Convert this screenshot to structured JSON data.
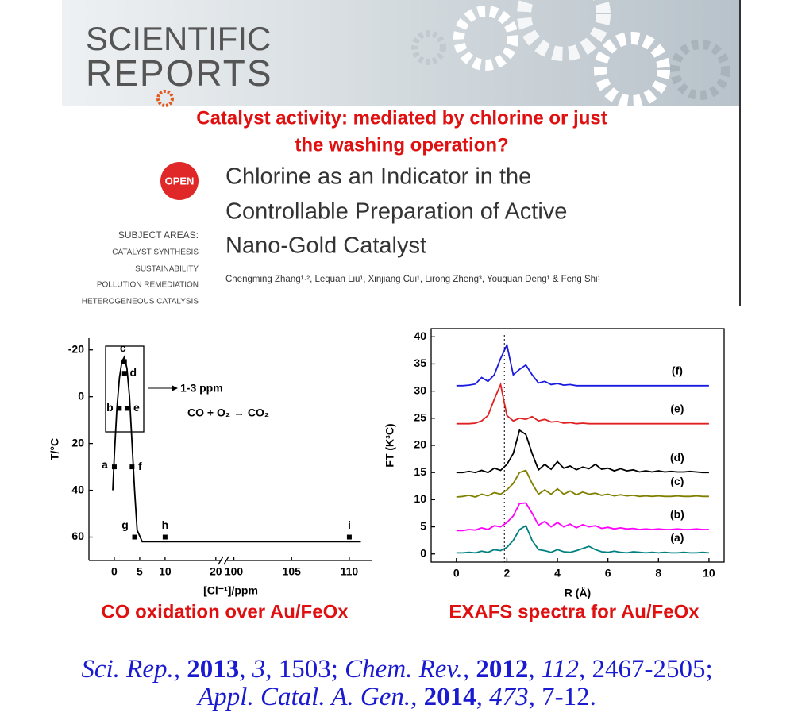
{
  "header": {
    "journal_line1": "SCIENTIFIC",
    "journal_line2": "REPORTS"
  },
  "headline": [
    "Catalyst activity: mediated by chlorine or just",
    "the washing operation?"
  ],
  "open_badge": "OPEN",
  "article_title": [
    "Chlorine as an Indicator in the",
    "Controllable Preparation of Active",
    "Nano-Gold Catalyst"
  ],
  "subject_areas": {
    "label": "SUBJECT AREAS:",
    "items": [
      "CATALYST SYNTHESIS",
      "SUSTAINABILITY",
      "POLLUTION REMEDIATION",
      "HETEROGENEOUS CATALYSIS"
    ]
  },
  "authors": "Chengming Zhang¹·², Lequan Liu¹, Xinjiang Cui¹, Lirong Zheng³, Youquan Deng¹ & Feng Shi¹",
  "chart_data": [
    {
      "type": "line",
      "x_label": "[Cl⁻¹]/ppm",
      "y_label": "T/°C",
      "xlim": [
        -5,
        112
      ],
      "xbreak": [
        20.5,
        99
      ],
      "ylim": [
        -25,
        70
      ],
      "y_inverted": true,
      "xticks": [
        0,
        5,
        10,
        20,
        100,
        105,
        110
      ],
      "yticks": [
        -20,
        0,
        20,
        40,
        60
      ],
      "annotations": [
        "1-3 ppm",
        "CO + O₂ → CO₂"
      ],
      "series": [
        {
          "color": "#000000",
          "x": [
            -0.3,
            0,
            0.5,
            1,
            1.5,
            2,
            2.5,
            3,
            3.5,
            4,
            4.5,
            5.5,
            111
          ],
          "values": [
            40,
            25,
            5,
            -8,
            -15,
            -17,
            -12,
            0,
            20,
            40,
            57,
            62,
            62
          ]
        },
        {
          "color": "#000000",
          "marker": "square",
          "x": [
            0,
            1,
            2,
            2,
            2.5,
            3.5,
            4,
            10,
            110
          ],
          "values": [
            30,
            5,
            -15,
            -10,
            5,
            30,
            60,
            60,
            60
          ],
          "point_labels": [
            "a",
            "b",
            "c",
            "d",
            "e",
            "f",
            "g",
            "h",
            "i"
          ]
        }
      ]
    },
    {
      "type": "line",
      "x_label": "R (Å)",
      "y_label": "FT (K³C)",
      "xlim": [
        -1,
        10.6
      ],
      "ylim": [
        -1.5,
        41.5
      ],
      "xticks": [
        0,
        2,
        4,
        6,
        8,
        10
      ],
      "yticks": [
        0,
        5,
        10,
        15,
        20,
        25,
        30,
        35,
        40
      ],
      "vline_x": 1.9,
      "x": [
        0,
        0.25,
        0.5,
        0.75,
        1,
        1.25,
        1.5,
        1.75,
        2,
        2.25,
        2.5,
        2.75,
        3,
        3.25,
        3.5,
        3.75,
        4,
        4.25,
        4.5,
        4.75,
        5,
        5.25,
        5.5,
        5.75,
        6,
        6.25,
        6.5,
        6.75,
        7,
        7.25,
        7.5,
        7.75,
        8,
        8.25,
        8.5,
        8.75,
        9,
        9.25,
        9.5,
        9.75,
        10
      ],
      "series": [
        {
          "name": "(a)",
          "color": "#008080",
          "values": [
            0.2,
            0.2,
            0.3,
            0.2,
            0.5,
            0.3,
            0.8,
            0.6,
            1.2,
            2.5,
            4.5,
            5.2,
            2.5,
            0.8,
            0.6,
            0.3,
            0.8,
            0.4,
            0.3,
            0.6,
            1,
            1.4,
            0.8,
            0.4,
            0.3,
            0.5,
            0.3,
            0.2,
            0.4,
            0.3,
            0.2,
            0.3,
            0.2,
            0.3,
            0.2,
            0.2,
            0.3,
            0.2,
            0.2,
            0.3,
            0.2
          ]
        },
        {
          "name": "(b)",
          "color": "#ff00ff",
          "values": [
            4.3,
            4.3,
            4.5,
            4.4,
            4.8,
            4.5,
            5.2,
            5,
            5.8,
            7,
            9.3,
            9.4,
            7.5,
            5.3,
            6,
            5,
            5.8,
            5,
            5.5,
            4.8,
            5.4,
            5,
            5.2,
            4.7,
            4.9,
            4.6,
            4.8,
            4.6,
            4.7,
            4.5,
            4.6,
            4.5,
            4.6,
            4.5,
            4.5,
            4.6,
            4.5,
            4.5,
            4.6,
            4.5,
            4.5
          ]
        },
        {
          "name": "(c)",
          "color": "#808000",
          "values": [
            10.5,
            10.6,
            10.8,
            10.5,
            11,
            10.7,
            11.3,
            11,
            11.8,
            13,
            15,
            15.4,
            13,
            11,
            11.8,
            11,
            12,
            11,
            11.6,
            10.9,
            11.4,
            11,
            11.2,
            10.8,
            11,
            10.7,
            10.9,
            10.7,
            10.8,
            10.6,
            10.7,
            10.6,
            10.7,
            10.6,
            10.6,
            10.7,
            10.6,
            10.6,
            10.7,
            10.6,
            10.6
          ]
        },
        {
          "name": "(d)",
          "color": "#000000",
          "values": [
            15,
            15,
            15.2,
            15,
            15.4,
            15,
            15.8,
            15.4,
            16.5,
            18.5,
            22.8,
            22,
            18.5,
            15.5,
            16.5,
            15.6,
            17,
            15.8,
            16.2,
            15.5,
            16,
            15.7,
            16.5,
            15.6,
            15.8,
            15.3,
            15.7,
            15.3,
            15.5,
            15.1,
            15.3,
            15.1,
            15.3,
            15.1,
            15.2,
            15.1,
            15.1,
            15.2,
            15.1,
            15,
            15
          ]
        },
        {
          "name": "(e)",
          "color": "#e02020",
          "values": [
            24,
            24,
            24,
            24.1,
            24.5,
            25.5,
            28.5,
            31.2,
            25.5,
            24.5,
            25,
            24.8,
            25.3,
            24.5,
            24.8,
            24.3,
            24.4,
            24.1,
            24.2,
            24,
            24.1,
            24,
            24,
            24,
            24,
            24,
            24,
            24,
            24,
            24,
            24,
            24,
            24,
            24,
            24,
            24,
            24,
            24,
            24,
            24,
            24
          ]
        },
        {
          "name": "(f)",
          "color": "#1a1ae0",
          "values": [
            31,
            31,
            31.1,
            31.3,
            32.5,
            31.8,
            33,
            36,
            38.5,
            33,
            34,
            34.8,
            33,
            31.5,
            31.8,
            31.2,
            31.4,
            31.1,
            31.2,
            31,
            31,
            31,
            31,
            31,
            31,
            31,
            31,
            31,
            31,
            31,
            31,
            31,
            31,
            31,
            31,
            31,
            31,
            31,
            31,
            31,
            31
          ]
        }
      ]
    }
  ],
  "captions": [
    "CO oxidation over Au/FeOx",
    "EXAFS spectra for Au/FeOx"
  ],
  "references": [
    [
      "Sci. Rep., ",
      "2013",
      ", ",
      "3",
      ", 1503; ",
      "Chem. Rev., ",
      "2012",
      ", ",
      "112",
      ", 2467-2505;"
    ],
    [
      "Appl. Catal. A. Gen., ",
      "2014",
      ", ",
      "473",
      ", 7-12."
    ]
  ]
}
